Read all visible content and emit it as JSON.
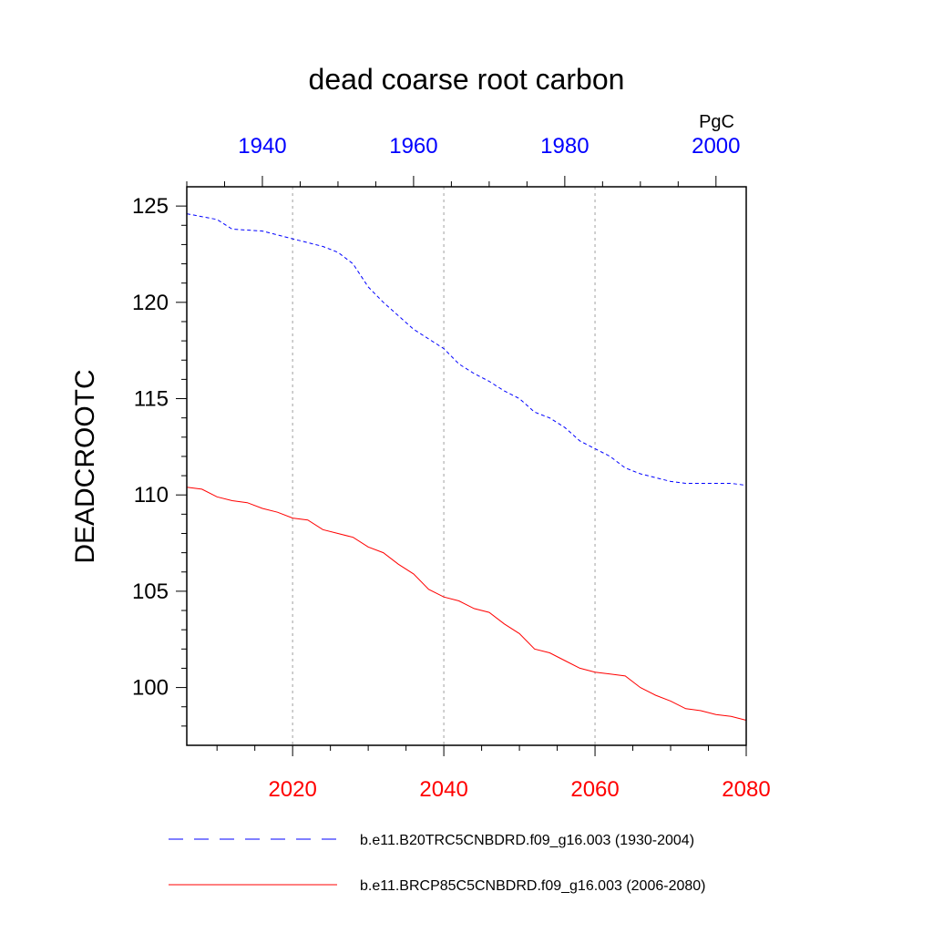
{
  "chart_data": {
    "type": "line",
    "title": "dead coarse root carbon",
    "ylabel": "DEADCROOTC",
    "units": "PgC",
    "ylim": [
      97,
      126
    ],
    "yticks": [
      100,
      105,
      110,
      115,
      120,
      125
    ],
    "top_axis": {
      "color": "#0000ff",
      "xlim": [
        1930,
        2004
      ],
      "ticks": [
        1940,
        1960,
        1980,
        2000
      ]
    },
    "bottom_axis": {
      "color": "#ff0000",
      "xlim": [
        2006,
        2080
      ],
      "ticks": [
        2020,
        2040,
        2060,
        2080
      ]
    },
    "series": [
      {
        "name": "b.e11.B20TRC5CNBDRD.f09_g16.003 (1930-2004)",
        "color": "#0000ff",
        "dash": "dashed",
        "axis": "top",
        "x": [
          1930,
          1934,
          1936,
          1940,
          1944,
          1948,
          1950,
          1952,
          1954,
          1956,
          1958,
          1960,
          1962,
          1964,
          1966,
          1968,
          1970,
          1972,
          1974,
          1976,
          1978,
          1980,
          1982,
          1984,
          1986,
          1988,
          1990,
          1992,
          1994,
          1996,
          1998,
          2000,
          2002,
          2004
        ],
        "values": [
          124.6,
          124.3,
          123.8,
          123.7,
          123.3,
          122.9,
          122.6,
          122.0,
          120.8,
          120.0,
          119.3,
          118.6,
          118.1,
          117.6,
          116.8,
          116.3,
          115.9,
          115.4,
          115.0,
          114.3,
          114.0,
          113.5,
          112.8,
          112.4,
          112.0,
          111.4,
          111.1,
          110.9,
          110.7,
          110.6,
          110.6,
          110.6,
          110.6,
          110.5
        ]
      },
      {
        "name": "b.e11.BRCP85C5CNBDRD.f09_g16.003 (2006-2080)",
        "color": "#ff0000",
        "dash": "solid",
        "axis": "bottom",
        "x": [
          2006,
          2008,
          2010,
          2012,
          2014,
          2016,
          2018,
          2020,
          2022,
          2024,
          2026,
          2028,
          2030,
          2032,
          2034,
          2036,
          2038,
          2040,
          2042,
          2044,
          2046,
          2048,
          2050,
          2052,
          2054,
          2056,
          2058,
          2060,
          2062,
          2064,
          2066,
          2068,
          2070,
          2072,
          2074,
          2076,
          2078,
          2080
        ],
        "values": [
          110.4,
          110.3,
          109.9,
          109.7,
          109.6,
          109.3,
          109.1,
          108.8,
          108.7,
          108.2,
          108.0,
          107.8,
          107.3,
          107.0,
          106.4,
          105.9,
          105.1,
          104.7,
          104.5,
          104.1,
          103.9,
          103.3,
          102.8,
          102.0,
          101.8,
          101.4,
          101.0,
          100.8,
          100.7,
          100.6,
          100.0,
          99.6,
          99.3,
          98.9,
          98.8,
          98.6,
          98.5,
          98.3
        ]
      }
    ]
  }
}
